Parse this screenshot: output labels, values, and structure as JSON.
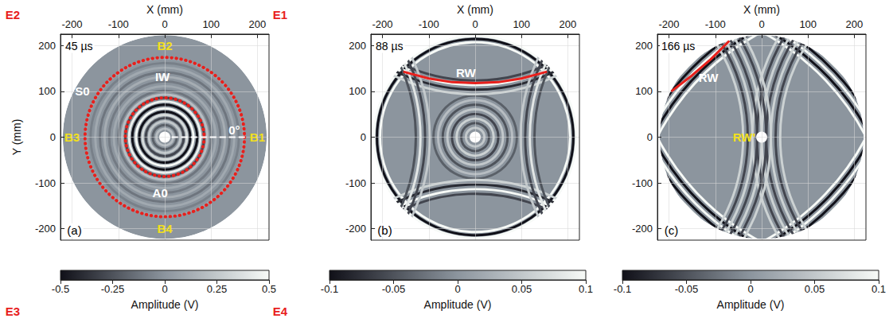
{
  "chart_data": [
    {
      "type": "wavefield",
      "panel_label": {
        "text": "(a)",
        "x": -195,
        "y": -203
      },
      "time_label": {
        "text": "45 µs",
        "x": -185,
        "y": 198
      },
      "xlabel": "X (mm)",
      "ylabel": "Y (mm)",
      "xlim": [
        -225,
        225
      ],
      "xticks": [
        -200,
        -100,
        0,
        100,
        200
      ],
      "ylim": [
        -225,
        225
      ],
      "yticks": [
        -200,
        -100,
        0,
        100,
        200
      ],
      "grid": true,
      "plate": {
        "center": [
          0,
          0
        ],
        "radius": 220,
        "hole_radius": 12,
        "amplitude": 0
      },
      "wavefronts": [
        {
          "center": [
            0,
            0
          ],
          "radii": [
            18,
            26,
            34,
            41,
            48,
            55,
            62,
            70,
            77,
            85,
            92,
            100,
            110,
            120,
            130,
            140,
            150,
            160,
            170
          ],
          "amplitudes": [
            0.2,
            -0.2,
            0.25,
            -0.3,
            0.35,
            -0.5,
            0.5,
            -0.5,
            0.45,
            -0.3,
            0.2,
            -0.12,
            0.1,
            -0.1,
            0.12,
            -0.12,
            0.1,
            -0.08,
            0.06
          ]
        }
      ],
      "circles": [
        {
          "r": 85,
          "color": "#e8201c",
          "line_style": "dotted"
        },
        {
          "r": 172,
          "color": "#e8201c",
          "line_style": "dotted"
        }
      ],
      "lines": [
        {
          "points": [
            [
              15,
              0
            ],
            [
              180,
              0
            ]
          ],
          "color": "#ffffff",
          "line_style": "dashed"
        }
      ],
      "annotations": [
        {
          "text": "B2",
          "x": 0,
          "y": 200,
          "color": "#f2e01c"
        },
        {
          "text": "B1",
          "x": 200,
          "y": 0,
          "color": "#f2e01c"
        },
        {
          "text": "B3",
          "x": -200,
          "y": 0,
          "color": "#f2e01c"
        },
        {
          "text": "B4",
          "x": 0,
          "y": -200,
          "color": "#f2e01c"
        },
        {
          "text": "IW",
          "x": -5,
          "y": 132,
          "color": "#ffffff"
        },
        {
          "text": "S0",
          "x": -178,
          "y": 100,
          "color": "#ffffff"
        },
        {
          "text": "A0",
          "x": -10,
          "y": -122,
          "color": "#ffffff"
        },
        {
          "text": "0°",
          "x": 150,
          "y": 16,
          "color": "#ffffff"
        },
        {
          "text": "E1",
          "x": 249,
          "y": 268,
          "color": "#e8201c"
        },
        {
          "text": "E2",
          "x": -328,
          "y": 268,
          "color": "#e8201c"
        },
        {
          "text": "E3",
          "x": -328,
          "y": -380,
          "color": "#e8201c"
        },
        {
          "text": "E4",
          "x": 249,
          "y": -380,
          "color": "#e8201c"
        }
      ],
      "colorbar": {
        "label": "Amplitude (V)",
        "range": [
          -0.5,
          0.5
        ],
        "ticks": [
          -0.5,
          -0.25,
          0,
          0.25,
          0.5
        ],
        "colors": [
          "#101018",
          "#8c959e",
          "#f7faf7"
        ]
      }
    },
    {
      "type": "wavefield",
      "panel_label": {
        "text": "(b)",
        "x": -195,
        "y": -203
      },
      "time_label": {
        "text": "88 µs",
        "x": -185,
        "y": 198
      },
      "xlabel": "X (mm)",
      "xlim": [
        -225,
        225
      ],
      "xticks": [
        -200,
        -100,
        0,
        100,
        200
      ],
      "ylim": [
        -225,
        225
      ],
      "yticks": [
        -200,
        -100,
        0,
        100,
        200
      ],
      "grid": true,
      "plate": {
        "center": [
          0,
          0
        ],
        "radius": 220,
        "hole_radius": 12,
        "amplitude": 0
      },
      "wavefronts": [
        {
          "center": [
            0,
            0
          ],
          "radii": [
            20,
            30,
            40,
            50,
            60,
            70,
            80,
            90,
            205,
            212,
            218
          ],
          "amplitudes": [
            0.05,
            -0.05,
            0.06,
            -0.06,
            0.05,
            -0.05,
            0.04,
            -0.04,
            0.1,
            -0.1,
            0.1
          ]
        },
        {
          "center": [
            0,
            500
          ],
          "radii": [
            372,
            382,
            392,
            402
          ],
          "amplitudes": [
            -0.06,
            0.1,
            -0.08,
            0.06
          ]
        },
        {
          "center": [
            0,
            -500
          ],
          "radii": [
            372,
            382,
            392,
            402
          ],
          "amplitudes": [
            -0.06,
            0.1,
            -0.08,
            0.06
          ]
        },
        {
          "center": [
            500,
            0
          ],
          "radii": [
            372,
            382,
            392,
            402
          ],
          "amplitudes": [
            -0.05,
            0.08,
            -0.06,
            0.05
          ]
        },
        {
          "center": [
            -500,
            0
          ],
          "radii": [
            372,
            382,
            392,
            402
          ],
          "amplitudes": [
            -0.05,
            0.08,
            -0.06,
            0.05
          ]
        }
      ],
      "circles": [],
      "lines": [
        {
          "points": [
            [
              -155,
              143
            ],
            [
              -100,
              128
            ],
            [
              -50,
              120
            ],
            [
              0,
              118
            ],
            [
              50,
              120
            ],
            [
              100,
              128
            ],
            [
              155,
              143
            ]
          ],
          "color": "#e8201c",
          "line_style": "solid"
        }
      ],
      "annotations": [
        {
          "text": "RW",
          "x": -20,
          "y": 140,
          "color": "#ffffff"
        }
      ],
      "colorbar": {
        "label": "Amplitude (V)",
        "range": [
          -0.1,
          0.1
        ],
        "ticks": [
          -0.1,
          -0.05,
          0,
          0.05,
          0.1
        ],
        "colors": [
          "#101018",
          "#8c959e",
          "#f7faf7"
        ]
      }
    },
    {
      "type": "wavefield",
      "panel_label": {
        "text": "(c)",
        "x": -195,
        "y": -203
      },
      "time_label": {
        "text": "166 µs",
        "x": -180,
        "y": 198
      },
      "xlabel": "X (mm)",
      "xlim": [
        -225,
        225
      ],
      "xticks": [
        -200,
        -100,
        0,
        100,
        200
      ],
      "ylim": [
        -225,
        225
      ],
      "yticks": [
        -200,
        -100,
        0,
        100,
        200
      ],
      "grid": true,
      "plate": {
        "center": [
          0,
          0
        ],
        "radius": 220,
        "hole_radius": 12,
        "amplitude": 0
      },
      "wavefronts": [
        {
          "center": [
            250,
            -250
          ],
          "radii": [
            536,
            545,
            554,
            563,
            572,
            581,
            590,
            599
          ],
          "amplitudes": [
            0.1,
            -0.1,
            0.1,
            -0.1,
            0.1,
            -0.1,
            0.1,
            -0.1
          ]
        },
        {
          "center": [
            -250,
            -250
          ],
          "radii": [
            536,
            545,
            554,
            563,
            572,
            581,
            590,
            599
          ],
          "amplitudes": [
            0.1,
            -0.1,
            0.1,
            -0.1,
            0.1,
            -0.1,
            0.1,
            -0.1
          ]
        },
        {
          "center": [
            250,
            250
          ],
          "radii": [
            536,
            545,
            554,
            563,
            572,
            581,
            590,
            599
          ],
          "amplitudes": [
            0.1,
            -0.1,
            0.1,
            -0.1,
            0.1,
            -0.1,
            0.1,
            -0.1
          ]
        },
        {
          "center": [
            -250,
            250
          ],
          "radii": [
            536,
            545,
            554,
            563,
            572,
            581,
            590,
            599
          ],
          "amplitudes": [
            0.1,
            -0.1,
            0.1,
            -0.1,
            0.1,
            -0.1,
            0.1,
            -0.1
          ]
        },
        {
          "center": [
            420,
            0
          ],
          "radii": [
            380,
            390,
            400,
            410,
            420,
            430,
            440
          ],
          "amplitudes": [
            0.06,
            -0.06,
            0.06,
            -0.06,
            0.06,
            -0.06,
            0.06
          ]
        },
        {
          "center": [
            -420,
            0
          ],
          "radii": [
            380,
            390,
            400,
            410,
            420,
            430,
            440
          ],
          "amplitudes": [
            0.06,
            -0.06,
            0.06,
            -0.06,
            0.06,
            -0.06,
            0.06
          ]
        }
      ],
      "circles": [],
      "lines": [
        {
          "points": [
            [
              -195,
              100
            ],
            [
              -150,
              135
            ],
            [
              -110,
              170
            ],
            [
              -70,
              210
            ]
          ],
          "color": "#e8201c",
          "line_style": "solid"
        }
      ],
      "annotations": [
        {
          "text": "RW",
          "x": -115,
          "y": 130,
          "color": "#ffffff"
        },
        {
          "text": "RW'",
          "x": -38,
          "y": 0,
          "color": "#f2e01c"
        }
      ],
      "colorbar": {
        "label": "Amplitude (V)",
        "range": [
          -0.1,
          0.1
        ],
        "ticks": [
          -0.1,
          -0.05,
          0,
          0.05,
          0.1
        ],
        "colors": [
          "#101018",
          "#8c959e",
          "#f7faf7"
        ]
      }
    }
  ]
}
